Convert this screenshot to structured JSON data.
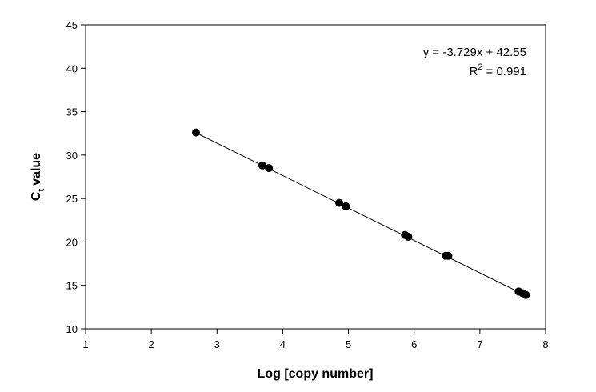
{
  "chart_data": {
    "type": "scatter",
    "x_label": "Log [copy number]",
    "y_label": {
      "base": "C",
      "subscript": "t",
      "text": "value"
    },
    "equation": "y = -3.729x + 42.55",
    "r_squared": {
      "base": "R",
      "superscript": "2",
      "text": "= 0.991"
    },
    "color": "#000000",
    "x": [
      2.68,
      3.69,
      3.79,
      4.86,
      4.96,
      5.86,
      5.91,
      6.48,
      6.52,
      7.59,
      7.65,
      7.7
    ],
    "values": [
      32.6,
      28.8,
      28.5,
      24.5,
      24.1,
      20.8,
      20.6,
      18.4,
      18.4,
      14.3,
      14.1,
      13.9
    ],
    "trendline": {
      "x": [
        2.67,
        7.68
      ],
      "values": [
        32.6,
        13.9
      ]
    },
    "xlim": [
      1,
      8
    ],
    "xticks": [
      1,
      2,
      3,
      4,
      5,
      6,
      7,
      8
    ],
    "ylim": [
      10,
      45
    ],
    "yticks": [
      10,
      15,
      20,
      25,
      30,
      35,
      40,
      45
    ],
    "grid": false
  }
}
